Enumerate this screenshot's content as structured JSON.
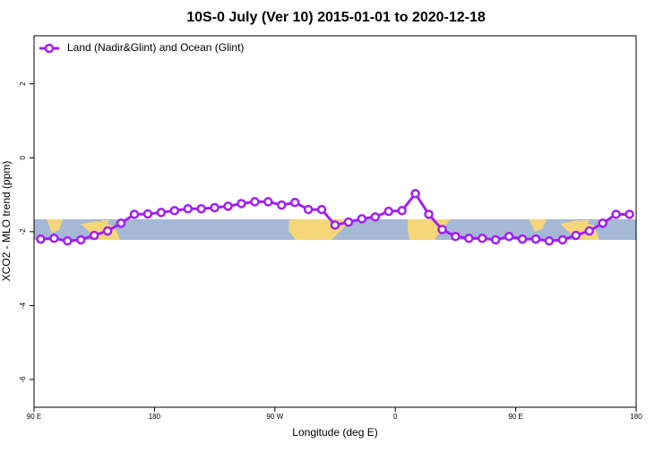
{
  "chart_data": {
    "type": "line",
    "title": "10S-0 July (Ver 10)   2015-01-01 to 2020-12-18",
    "x_label": "Longitude (deg E)",
    "y_label": "XCO2 - MLO trend (ppm)",
    "x": [
      95,
      105,
      115,
      125,
      135,
      145,
      155,
      165,
      175,
      185,
      195,
      205,
      215,
      225,
      235,
      245,
      255,
      265,
      275,
      285,
      295,
      305,
      315,
      325,
      335,
      345,
      355,
      365,
      375,
      385,
      395,
      405,
      415,
      425,
      435,
      445,
      455,
      465,
      475,
      485,
      495,
      505,
      515,
      525,
      535
    ],
    "series": [
      {
        "name": "Land (Nadir&Glint) and Ocean (Glint)",
        "color": "#a020f0",
        "values": [
          -2.2,
          -2.18,
          -2.25,
          -2.22,
          -2.1,
          -1.98,
          -1.77,
          -1.53,
          -1.52,
          -1.48,
          -1.43,
          -1.38,
          -1.38,
          -1.35,
          -1.31,
          -1.24,
          -1.19,
          -1.19,
          -1.28,
          -1.21,
          -1.4,
          -1.4,
          -1.82,
          -1.74,
          -1.65,
          -1.6,
          -1.45,
          -1.43,
          -0.97,
          -1.53,
          -1.94,
          -2.13,
          -2.18,
          -2.18,
          -2.22,
          -2.13,
          -2.2,
          -2.2,
          -2.25,
          -2.22,
          -2.1,
          -1.98,
          -1.77,
          -1.53,
          -1.53
        ]
      }
    ],
    "xlim": [
      90,
      540
    ],
    "xticks": [
      {
        "value": 90,
        "label": "90 E"
      },
      180,
      {
        "value": 270,
        "label": "90 W"
      },
      {
        "value": 360,
        "label": "0"
      },
      {
        "value": 450,
        "label": "90 E"
      },
      {
        "value": 540,
        "label": "180"
      }
    ],
    "ylim": [
      -6.75,
      3.3
    ],
    "yticks": [
      2,
      0,
      -2,
      -4,
      -6
    ],
    "legend": "top-left"
  }
}
